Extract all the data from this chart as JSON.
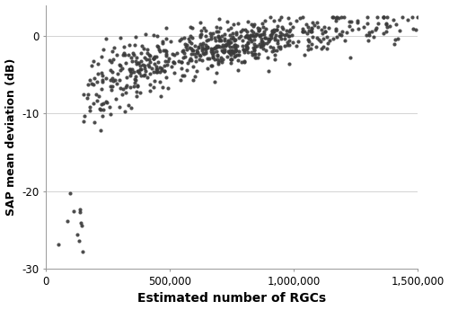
{
  "xlabel": "Estimated number of RGCs",
  "ylabel": "SAP mean deviation (dB)",
  "xlim": [
    0,
    1500000
  ],
  "ylim": [
    -30,
    4
  ],
  "yticks": [
    -30,
    -20,
    -10,
    0
  ],
  "xticks": [
    0,
    500000,
    1000000,
    1500000
  ],
  "xtick_labels": [
    "0",
    "500,000",
    "1,000,000",
    "1,500,000"
  ],
  "ytick_labels": [
    "-30",
    "-20",
    "-10",
    "0"
  ],
  "dot_color": "#3a3a3a",
  "dot_size": 9,
  "dot_alpha": 0.9,
  "grid_color": "#cccccc",
  "background_color": "#ffffff",
  "seed": 42,
  "n_points": 550
}
